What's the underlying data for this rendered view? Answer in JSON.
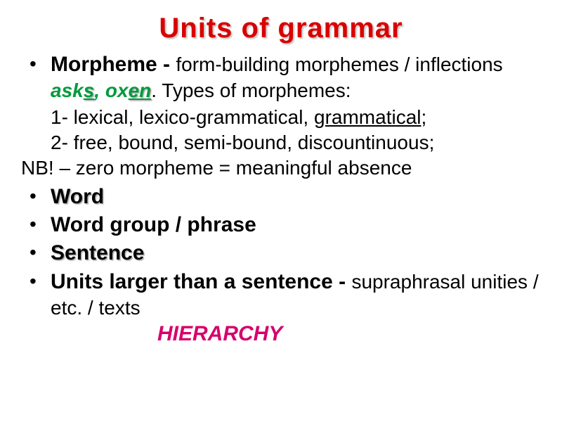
{
  "title": "Units  of  grammar",
  "colors": {
    "title": "#d90000",
    "green": "#009a3d",
    "hierarchy": "#d6006c",
    "text": "#000000",
    "background": "#ffffff"
  },
  "fonts": {
    "title_size": 40,
    "term_size": 30,
    "body_size": 28,
    "hierarchy_size": 30
  },
  "items": {
    "morpheme": {
      "term": "Morpheme - ",
      "desc_pre": "form-building morphemes / inflections ",
      "ex1_root": "ask",
      "ex1_suffix": "s",
      "ex_sep": ", ",
      "ex2_root": "ox",
      "ex2_suffix": "en",
      "desc_post": ". Types of morphemes:",
      "line1_pre": "1- lexical, lexico-grammatical, ",
      "line1_ul": "grammatical",
      "line1_post": ";",
      "line2": "2- free, bound, semi-bound, discountinuous;",
      "nb": "NB! – zero morpheme = meaningful absence"
    },
    "word": "Word",
    "phrase": "Word group / phrase",
    "sentence": "Sentence",
    "larger": {
      "term": "Units larger than a sentence - ",
      "desc": "supraphrasal unities / etc. / texts"
    }
  },
  "hierarchy": "HIERARCHY"
}
